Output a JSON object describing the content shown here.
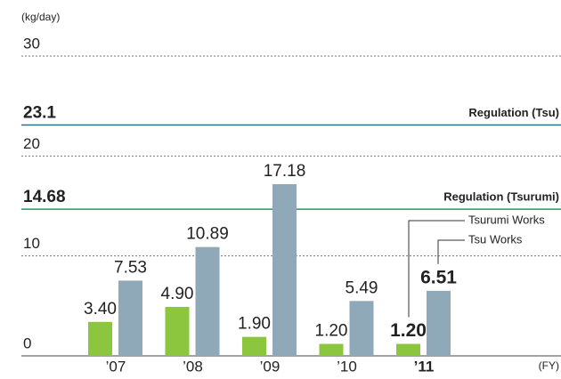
{
  "chart_data": {
    "type": "bar",
    "unit_label": "(kg/day)",
    "x_label": "(FY)",
    "categories": [
      "’07",
      "’08",
      "’09",
      "’10",
      "’11"
    ],
    "series": [
      {
        "name": "Tsurumi Works",
        "color": "#8cc63f",
        "values": [
          3.4,
          4.9,
          1.9,
          1.2,
          1.2
        ],
        "value_labels": [
          "3.40",
          "4.90",
          "1.90",
          "1.20",
          "1.20"
        ]
      },
      {
        "name": "Tsu Works",
        "color": "#8fa9b8",
        "values": [
          7.53,
          10.89,
          17.18,
          5.49,
          6.51
        ],
        "value_labels": [
          "7.53",
          "10.89",
          "17.18",
          "5.49",
          "6.51"
        ]
      }
    ],
    "regulations": [
      {
        "name": "Regulation (Tsu)",
        "value": 23.1,
        "color": "#2f6f86"
      },
      {
        "name": "Regulation (Tsurumi)",
        "value": 14.68,
        "color": "#1f9a5c"
      }
    ],
    "ylim": [
      0,
      30
    ],
    "yticks": [
      0,
      10,
      20,
      30
    ],
    "grid": true
  }
}
